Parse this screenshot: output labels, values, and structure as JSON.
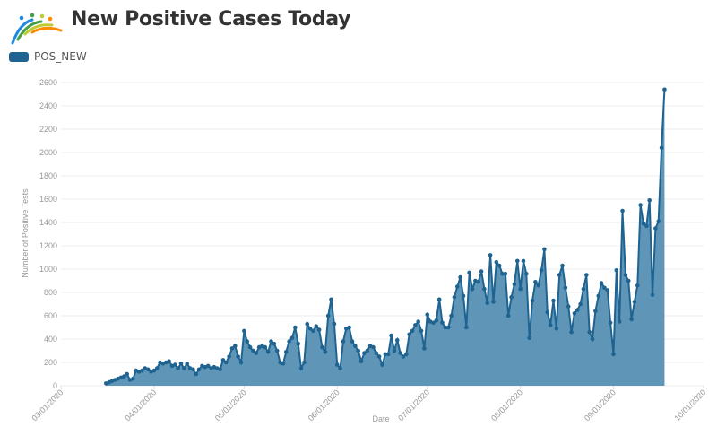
{
  "header": {
    "title": "New Positive Cases Today",
    "logo": "rainbow-people-logo"
  },
  "colors": {
    "line": "#1f6391",
    "fill": "#5f96b7",
    "grid": "#eeeeee"
  },
  "chart_data": {
    "type": "area",
    "title": "New Positive Cases Today",
    "xlabel": "Date",
    "ylabel": "Number of Positive Tests",
    "ylim": [
      0,
      2600
    ],
    "yticks": [
      0,
      200,
      400,
      600,
      800,
      1000,
      1200,
      1400,
      1600,
      1800,
      2000,
      2200,
      2400,
      2600
    ],
    "xlim": [
      "03/01/2020",
      "10/01/2020"
    ],
    "xticks": [
      "03/01/2020",
      "04/01/2020",
      "05/01/2020",
      "06/01/2020",
      "07/01/2020",
      "08/01/2020",
      "09/01/2020",
      "10/01/2020"
    ],
    "grid": true,
    "legend_position": "top-left",
    "series": [
      {
        "name": "POS_NEW",
        "start": "03/16/2020",
        "end": "09/18/2020",
        "values": [
          20,
          30,
          40,
          50,
          60,
          70,
          80,
          100,
          50,
          60,
          130,
          120,
          130,
          150,
          140,
          120,
          130,
          150,
          200,
          190,
          200,
          210,
          170,
          180,
          150,
          190,
          150,
          190,
          150,
          140,
          100,
          140,
          170,
          160,
          170,
          150,
          160,
          150,
          140,
          220,
          200,
          250,
          320,
          340,
          250,
          200,
          470,
          380,
          330,
          300,
          280,
          330,
          340,
          330,
          290,
          380,
          360,
          300,
          200,
          190,
          290,
          380,
          410,
          500,
          360,
          150,
          200,
          530,
          490,
          470,
          510,
          480,
          330,
          290,
          600,
          740,
          530,
          180,
          150,
          380,
          490,
          500,
          380,
          340,
          300,
          210,
          280,
          300,
          340,
          330,
          280,
          250,
          180,
          270,
          270,
          430,
          300,
          390,
          280,
          250,
          270,
          440,
          470,
          520,
          550,
          470,
          320,
          610,
          550,
          540,
          560,
          740,
          540,
          500,
          500,
          600,
          760,
          850,
          930,
          770,
          500,
          970,
          830,
          900,
          890,
          980,
          830,
          710,
          1120,
          720,
          1060,
          1030,
          960,
          960,
          600,
          760,
          870,
          1070,
          830,
          1070,
          960,
          410,
          730,
          890,
          860,
          990,
          1170,
          630,
          520,
          730,
          490,
          950,
          1030,
          840,
          680,
          460,
          620,
          650,
          700,
          830,
          950,
          460,
          400,
          640,
          770,
          880,
          840,
          820,
          540,
          270,
          990,
          550,
          1500,
          950,
          900,
          570,
          720,
          860,
          1550,
          1390,
          1370,
          1590,
          780,
          1350,
          1410,
          2040,
          2540
        ]
      }
    ]
  }
}
